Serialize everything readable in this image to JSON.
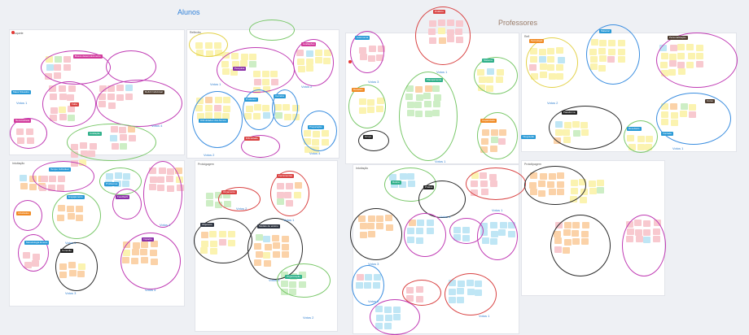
{
  "headers": {
    "alunos": "Alunos",
    "professores": "Professores"
  },
  "frames": {
    "f1": "Moquete",
    "f2": "Reflexão",
    "f3": "Intuitação",
    "f4": "Protoigagem",
    "f5": "Refl",
    "f6": "Intuitação",
    "f7": "Prototipagem"
  },
  "tags": {
    "t1": "Maus Situados",
    "t2": "Busca desenvolvimento",
    "t3": "Deficit Individual",
    "t4": "Falta",
    "t5": "Necessidade",
    "t6": "Avaliação",
    "t7": "Pesquisa",
    "t8": "Professor",
    "t9": "Carreira",
    "t10": "Avaliações",
    "t11": "Dificuldades dos Alunos",
    "t12": "Preparação",
    "t13": "Dificuldade",
    "t14": "Tempo Individual",
    "t15": "Atividades",
    "t16": "Engajamento",
    "t17": "Problemas",
    "t18": "Feedback",
    "t19": "Metodologia Ensino",
    "t20": "Conexão",
    "t21": "Impacto",
    "t22": "Orçamento",
    "t23": "Ferramentas",
    "t24": "Objetivos",
    "t25": "Modelo de ensino",
    "t26": "Organização",
    "t27": "Autonomia",
    "t28": "Didática",
    "t29": "Desafios",
    "t30": "Planejamento",
    "t31": "Sistema",
    "t32": "Capacidade",
    "t33": "Grupo",
    "t34": "Integração",
    "t35": "Tecnologia",
    "t36": "Material",
    "t37": "Personalização",
    "t38": "Plataforma",
    "t39": "Resultado",
    "t40": "Vontade",
    "t41": "Curso",
    "t42": "Rotina",
    "t43": "Prática"
  },
  "votes": {
    "v1": "Votos 1",
    "v2": "Votos 4",
    "v3": "Votos 2",
    "v4": "Votos 1",
    "v5": "Votos 4",
    "v6": "Votos 2",
    "v7": "Votos 1",
    "v8": "Votos 3",
    "v9": "Votos 4",
    "v10": "Votos 1",
    "v11": "Votos 2",
    "v12": "Votos 3",
    "v13": "Votos 1",
    "v14": "Votos 2",
    "v15": "Votos 3",
    "v16": "Votos 1",
    "v17": "Votos 1",
    "v18": "Votos 2",
    "v19": "Votos 1",
    "v20": "Votos 4",
    "v21": "Votos 1",
    "v22": "Votos 3",
    "v23": "Votos 2",
    "v24": "Votos 1"
  },
  "colors": {
    "background": "#eef0f4",
    "frame": "#ffffff",
    "alunos_title": "#2f80d8",
    "professores_title": "#9a7d6a",
    "vote_label": "#2f7fd0",
    "note_pink": "#f8c9cf",
    "note_yellow": "#fbf3b0",
    "note_blue": "#bfe6f5",
    "note_orange": "#fbd2a8",
    "note_green": "#cdeec5",
    "ring_magenta": "#c03bb4",
    "ring_green": "#7ac86a",
    "ring_blue": "#3b8ee0",
    "ring_dark": "#2a2a2a",
    "ring_red": "#d94343",
    "ring_yellow": "#e3d24a"
  }
}
